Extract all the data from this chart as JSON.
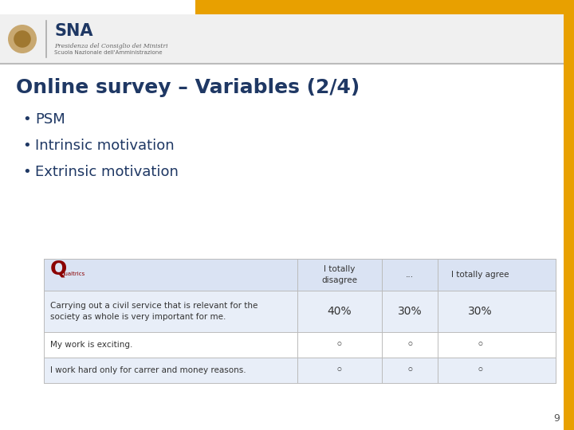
{
  "title": "Online survey – Variables (2/4)",
  "title_color": "#1F3864",
  "title_fontsize": 18,
  "bullets": [
    "PSM",
    "Intrinsic motivation",
    "Extrinsic motivation"
  ],
  "bullet_color": "#1F3864",
  "bullet_fontsize": 13,
  "bg_color": "#FFFFFF",
  "header_bg": "#DAE3F3",
  "row_bg_even": "#E8EEF8",
  "row_bg_odd": "#FFFFFF",
  "top_bar_color": "#E8A000",
  "side_bar_color": "#E8A000",
  "table_header": [
    "I totally\ndisagree",
    "...",
    "I totally agree"
  ],
  "table_rows": [
    [
      "Carrying out a civil service that is relevant for the\nsociety as whole is very important for me.",
      "40%",
      "30%",
      "30%"
    ],
    [
      "My work is exciting.",
      "◦",
      "◦",
      "◦"
    ],
    [
      "I work hard only for carrer and money reasons.",
      "◦",
      "◦",
      "◦"
    ]
  ],
  "footer_number": "9",
  "separator_color": "#BBBBBB",
  "header_area_bg": "#F0F0F0"
}
